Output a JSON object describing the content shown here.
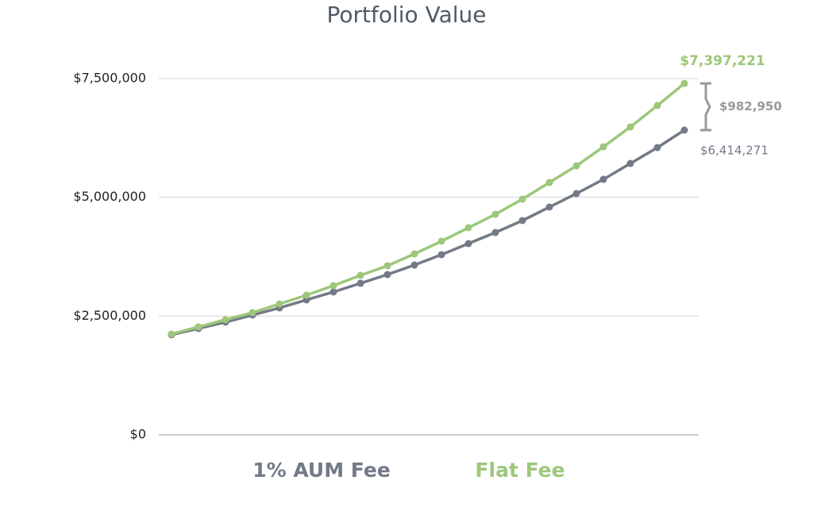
{
  "chart_data": {
    "type": "line",
    "title": "Portfolio Value",
    "categories": [
      null,
      null,
      null,
      null,
      null,
      null,
      null,
      null,
      null,
      null,
      null,
      null,
      null,
      null,
      null,
      null,
      null,
      null,
      null,
      null
    ],
    "series": [
      {
        "name": "1% AUM Fee",
        "color": "#737a87",
        "values": [
          2105000,
          2238000,
          2372000,
          2522000,
          2672000,
          2840000,
          3007000,
          3190000,
          3374000,
          3574000,
          3792000,
          4025000,
          4259000,
          4510000,
          4794000,
          5078000,
          5378000,
          5712000,
          6047000,
          6414271
        ],
        "value_labels": [
          null,
          null,
          null,
          null,
          null,
          null,
          null,
          null,
          null,
          null,
          null,
          null,
          null,
          null,
          null,
          null,
          null,
          null,
          null,
          "$6,414,271"
        ]
      },
      {
        "name": "Flat Fee",
        "color": "#9dc77a",
        "values": [
          2121000,
          2272000,
          2422000,
          2572000,
          2756000,
          2940000,
          3140000,
          3357000,
          3558000,
          3808000,
          4076000,
          4359000,
          4643000,
          4961000,
          5312000,
          5662000,
          6063000,
          6481000,
          6932000,
          7397221
        ],
        "value_labels": [
          null,
          null,
          null,
          null,
          null,
          null,
          null,
          null,
          null,
          null,
          null,
          null,
          null,
          null,
          null,
          null,
          null,
          null,
          null,
          "$7,397,221"
        ]
      }
    ],
    "annotation": "$982,950",
    "ylim": [
      0,
      7500000
    ],
    "yticks": [
      {
        "value": 0,
        "label": "$0"
      },
      {
        "value": 2500000,
        "label": "$2,500,000"
      },
      {
        "value": 5000000,
        "label": "$5,000,000"
      },
      {
        "value": 7500000,
        "label": "$7,500,000"
      }
    ],
    "grid": true,
    "legend": "bottom"
  }
}
